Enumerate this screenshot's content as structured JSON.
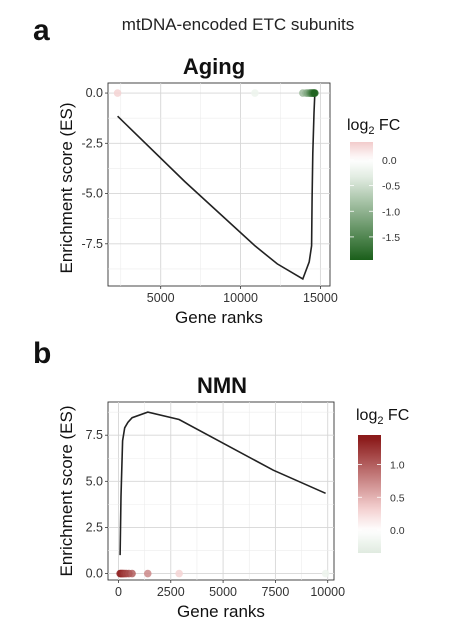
{
  "suptitle": "mtDNA-encoded ETC subunits",
  "colors": {
    "down_dark": "#1a5f1a",
    "down_light": "#e0ebe0",
    "mid": "#ffffff",
    "up_light": "#f2cccc",
    "up_dark": "#8b1a1a"
  },
  "chart_data": [
    {
      "panel": "a",
      "type": "line",
      "title": "Aging",
      "xlabel": "Gene ranks",
      "ylabel": "Enrichment score (ES)",
      "xlim": [
        1700,
        15600
      ],
      "ylim": [
        -9.6,
        0.5
      ],
      "xticks": [
        5000,
        10000,
        15000
      ],
      "yticks": [
        0.0,
        -2.5,
        -5.0,
        -7.5
      ],
      "ytick_labels": [
        "0.0",
        "-2.5",
        "-5.0",
        "-7.5"
      ],
      "grid": true,
      "line": {
        "x": [
          2300,
          6500,
          10900,
          12300,
          13900,
          14300,
          14450,
          14480,
          14520,
          14600,
          14650
        ],
        "y": [
          -1.15,
          -4.4,
          -7.6,
          -8.5,
          -9.25,
          -8.4,
          -7.6,
          -5.2,
          -3.0,
          -1.0,
          -0.05
        ]
      },
      "points": {
        "x": [
          2300,
          10900,
          13900,
          14100,
          14200,
          14300,
          14350,
          14400,
          14450,
          14500,
          14550,
          14600,
          14650
        ],
        "fc": [
          0.3,
          -0.2,
          -0.9,
          -1.0,
          -1.1,
          -1.2,
          -1.3,
          -1.4,
          -1.5,
          -1.6,
          -1.7,
          -1.8,
          -1.9
        ]
      },
      "legend": {
        "title_main": "log",
        "title_sub": "2",
        "title_end": " FC",
        "position": "right",
        "range": [
          -1.95,
          0.35
        ],
        "ticks": [
          0.0,
          -0.5,
          -1.0,
          -1.5
        ],
        "tick_labels": [
          "0.0",
          "-0.5",
          "-1.0",
          "-1.5"
        ]
      }
    },
    {
      "panel": "b",
      "type": "line",
      "title": "NMN",
      "xlabel": "Gene ranks",
      "ylabel": "Enrichment score (ES)",
      "xlim": [
        -500,
        10300
      ],
      "ylim": [
        -0.35,
        9.3
      ],
      "xticks": [
        0,
        2500,
        5000,
        7500,
        10000
      ],
      "yticks": [
        0.0,
        2.5,
        5.0,
        7.5
      ],
      "ytick_labels": [
        "0.0",
        "2.5",
        "5.0",
        "7.5"
      ],
      "grid": true,
      "line": {
        "x": [
          80,
          120,
          200,
          300,
          450,
          650,
          1400,
          2900,
          7400,
          9900
        ],
        "y": [
          1.0,
          4.2,
          7.2,
          7.9,
          8.2,
          8.45,
          8.75,
          8.35,
          5.6,
          4.35
        ]
      },
      "points": {
        "x": [
          80,
          130,
          180,
          230,
          300,
          380,
          500,
          650,
          1400,
          2900,
          9900
        ],
        "fc": [
          1.4,
          1.35,
          1.3,
          1.25,
          1.2,
          1.15,
          1.1,
          1.0,
          0.75,
          0.3,
          -0.2
        ]
      },
      "legend": {
        "title_main": "log",
        "title_sub": "2",
        "title_end": " FC",
        "position": "right",
        "range": [
          -0.35,
          1.45
        ],
        "ticks": [
          1.0,
          0.5,
          0.0
        ],
        "tick_labels": [
          "1.0",
          "0.5",
          "0.0"
        ]
      }
    }
  ]
}
